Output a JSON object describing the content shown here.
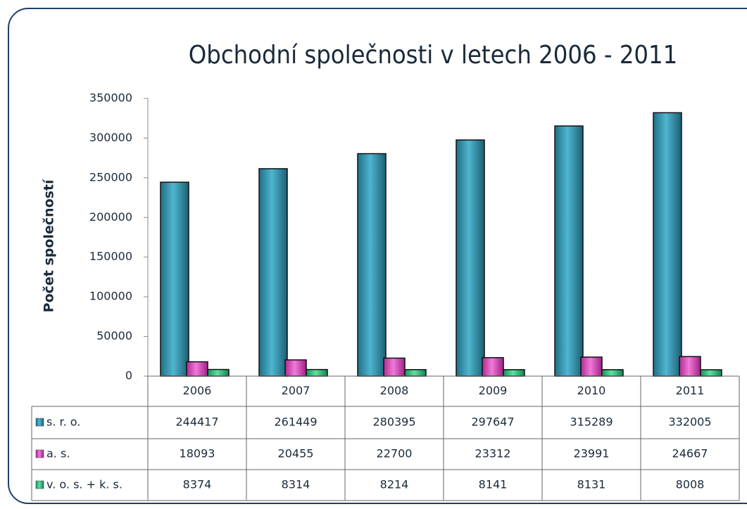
{
  "chart_data": {
    "type": "bar",
    "title": "Obchodní společnosti v letech 2006 - 2011",
    "y_label": "Počet společností",
    "categories": [
      "2006",
      "2007",
      "2008",
      "2009",
      "2010",
      "2011"
    ],
    "series": [
      {
        "name": "s. r. o.",
        "color": "#2a8aa6",
        "values": [
          244417,
          261449,
          280395,
          297647,
          315289,
          332005
        ]
      },
      {
        "name": "a. s.",
        "color": "#d83cb8",
        "values": [
          18093,
          20455,
          22700,
          23312,
          23991,
          24667
        ]
      },
      {
        "name": "v. o. s. + k. s.",
        "color": "#1fbf73",
        "values": [
          8374,
          8314,
          8214,
          8141,
          8131,
          8008
        ]
      }
    ],
    "ylim": [
      0,
      350000
    ],
    "yticks": [
      0,
      50000,
      100000,
      150000,
      200000,
      250000,
      300000,
      350000
    ],
    "grid": false
  }
}
